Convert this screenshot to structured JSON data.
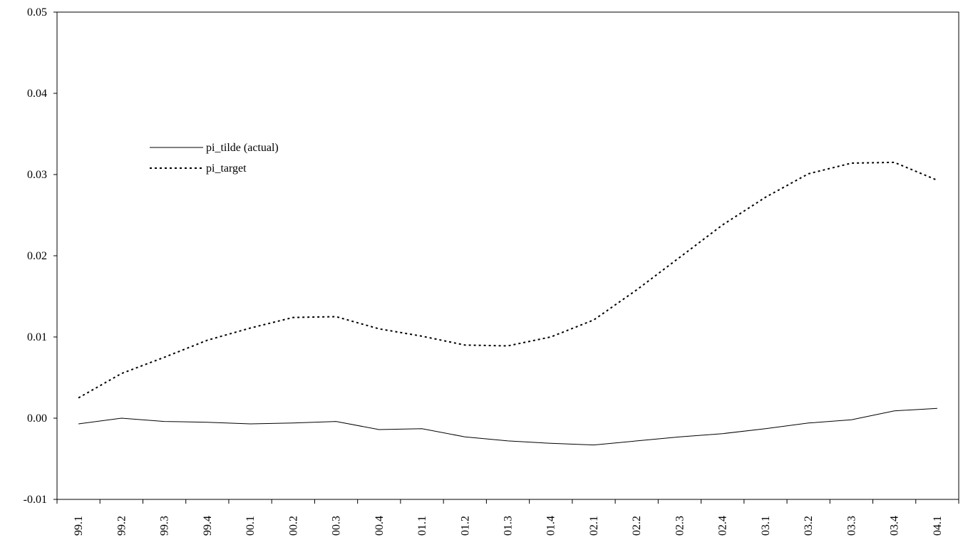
{
  "chart_data": {
    "type": "line",
    "title": "",
    "xlabel": "",
    "ylabel": "",
    "categories": [
      "99.1",
      "99.2",
      "99.3",
      "99.4",
      "00.1",
      "00.2",
      "00.3",
      "00.4",
      "01.1",
      "01.2",
      "01.3",
      "01.4",
      "02.1",
      "02.2",
      "02.3",
      "02.4",
      "03.1",
      "03.2",
      "03.3",
      "03.4",
      "04.1"
    ],
    "ylim": [
      -0.01,
      0.05
    ],
    "yticks": [
      "0.05",
      "0.04",
      "0.03",
      "0.02",
      "0.01",
      "0.00",
      "-0.01"
    ],
    "ytick_values": [
      0.05,
      0.04,
      0.03,
      0.02,
      0.01,
      0.0,
      -0.01
    ],
    "grid": false,
    "legend_position": "upper-left",
    "series": [
      {
        "name": "pi_tilde (actual)",
        "style": "solid",
        "color": "#000000",
        "values": [
          -0.0007,
          0.0,
          -0.0004,
          -0.0005,
          -0.0007,
          -0.0006,
          -0.0004,
          -0.0014,
          -0.0013,
          -0.0023,
          -0.0028,
          -0.0031,
          -0.0033,
          -0.0028,
          -0.0023,
          -0.0019,
          -0.0013,
          -0.0006,
          -0.0002,
          0.0009,
          0.0012
        ]
      },
      {
        "name": "pi_target",
        "style": "dotted",
        "color": "#000000",
        "values": [
          0.0025,
          0.0055,
          0.0075,
          0.0096,
          0.0111,
          0.0124,
          0.0125,
          0.011,
          0.0101,
          0.009,
          0.0089,
          0.01,
          0.0121,
          0.0158,
          0.0198,
          0.0238,
          0.0272,
          0.0301,
          0.0314,
          0.0315,
          0.0293
        ]
      }
    ]
  }
}
